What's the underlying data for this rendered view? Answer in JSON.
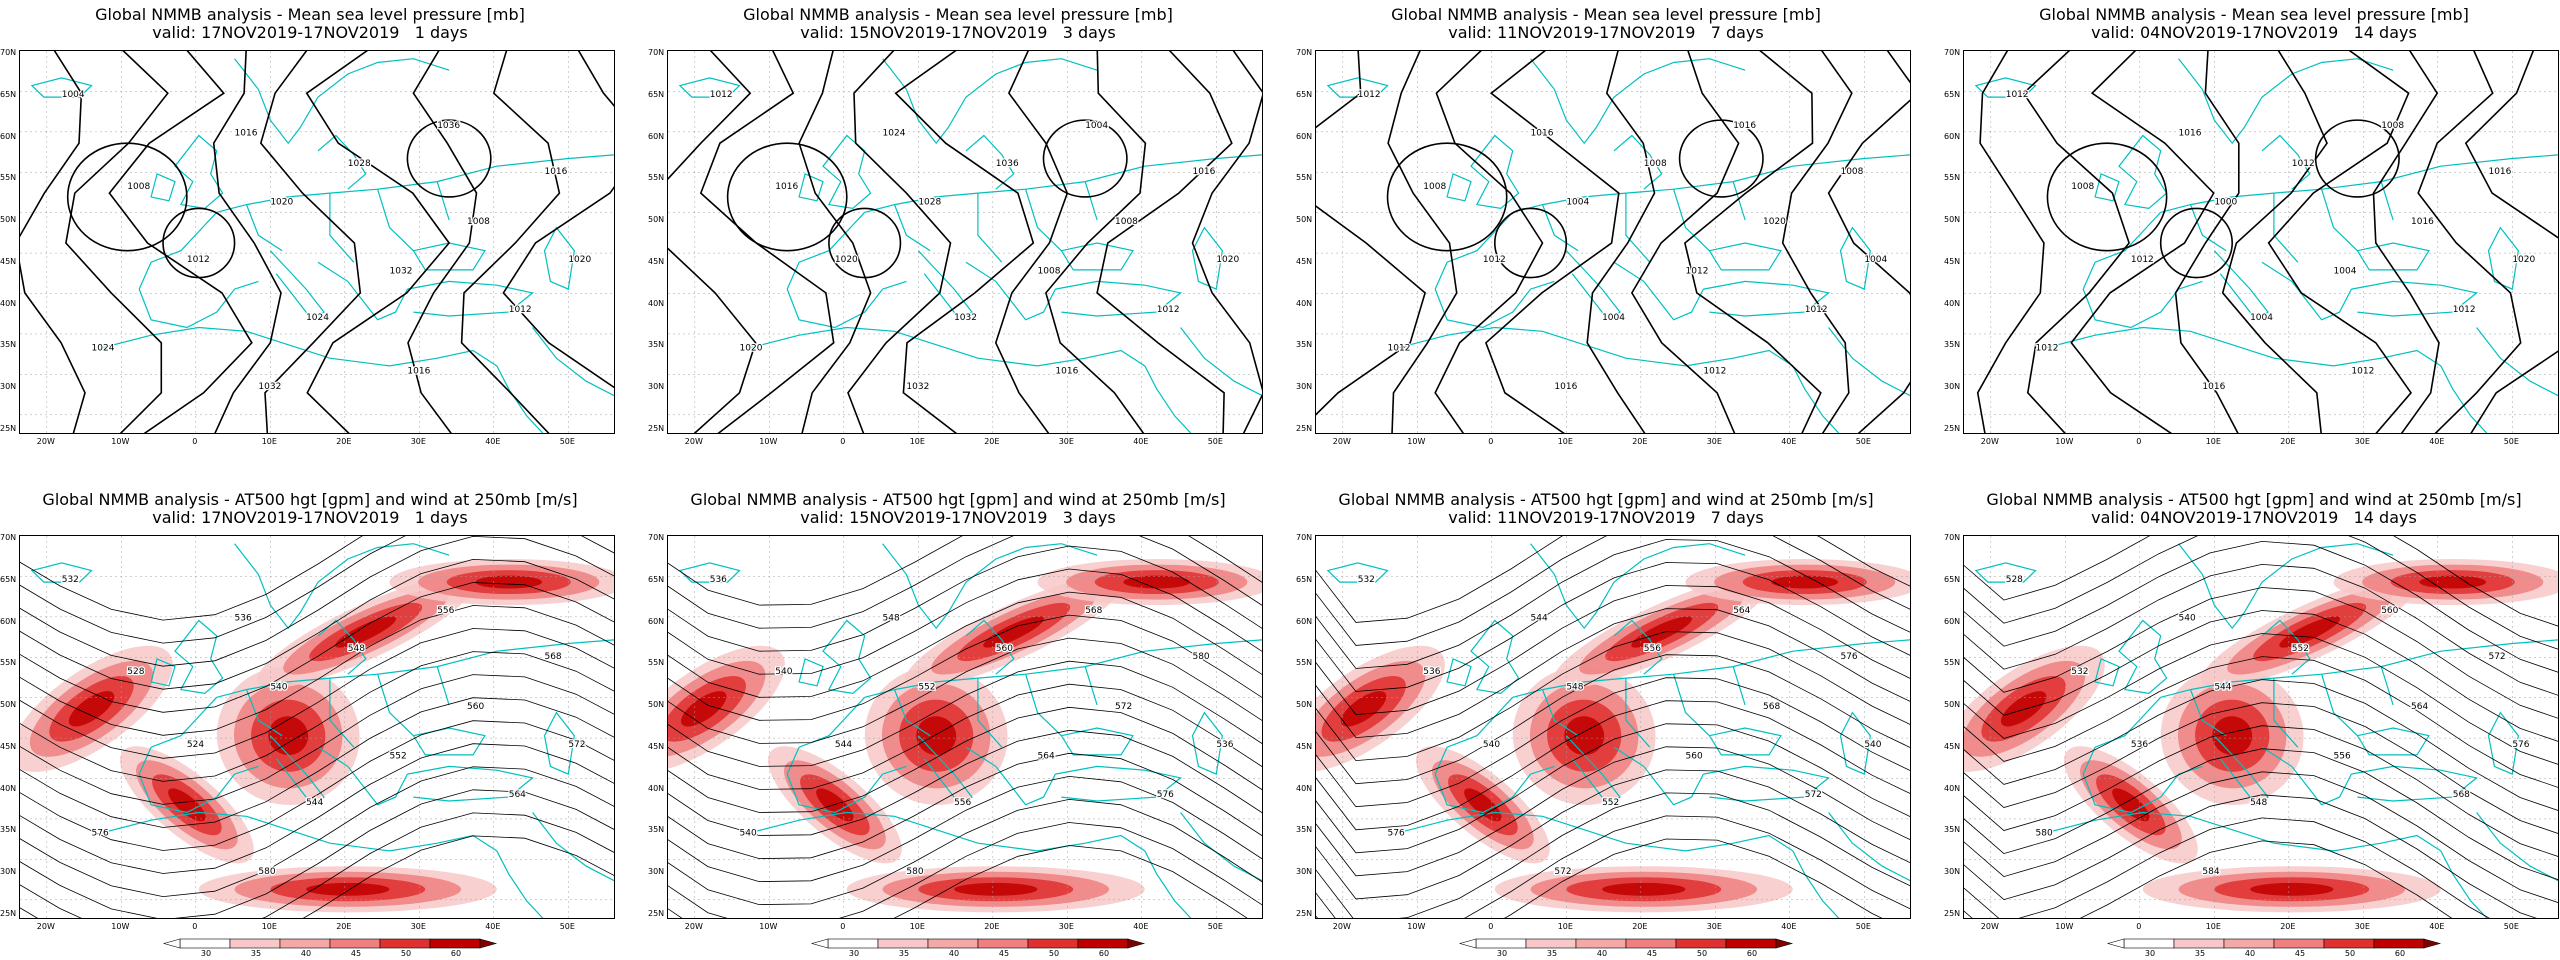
{
  "colors": {
    "coast": "#00c0c0",
    "contour": "#000000",
    "wind_light": "#f8c8c8",
    "wind_mid": "#f08080",
    "wind_strong": "#e03030",
    "wind_max": "#c00000",
    "grid": "#a0a0a0"
  },
  "axes": {
    "lat_ticks": [
      "70N",
      "65N",
      "60N",
      "55N",
      "50N",
      "45N",
      "40N",
      "35N",
      "30N",
      "25N"
    ],
    "lon_ticks": [
      "20W",
      "10W",
      "0",
      "10E",
      "20E",
      "30E",
      "40E",
      "50E"
    ]
  },
  "rows": [
    {
      "type": "mslp",
      "title": "Global NMMB analysis - Mean sea level pressure [mb]",
      "panels": [
        {
          "valid": "valid: 17NOV2019-17NOV2019   1 days",
          "labels": [
            "1004",
            "1008",
            "1012",
            "1016",
            "1020",
            "1024",
            "1028",
            "1032",
            "1036",
            "1008",
            "1012",
            "1016",
            "1020",
            "1024",
            "1032",
            "1016"
          ]
        },
        {
          "valid": "valid: 15NOV2019-17NOV2019   3 days",
          "labels": [
            "1012",
            "1016",
            "1020",
            "1024",
            "1028",
            "1032",
            "1036",
            "1008",
            "1004",
            "1008",
            "1012",
            "1016",
            "1020",
            "1020",
            "1032",
            "1016"
          ]
        },
        {
          "valid": "valid: 11NOV2019-17NOV2019   7 days",
          "labels": [
            "1012",
            "1008",
            "1012",
            "1016",
            "1004",
            "1004",
            "1008",
            "1012",
            "1016",
            "1020",
            "1012",
            "1008",
            "1004",
            "1012",
            "1016",
            "1012"
          ]
        },
        {
          "valid": "valid: 04NOV2019-17NOV2019   14 days",
          "labels": [
            "1012",
            "1008",
            "1012",
            "1016",
            "1000",
            "1004",
            "1012",
            "1004",
            "1008",
            "1016",
            "1012",
            "1016",
            "1020",
            "1012",
            "1016",
            "1012"
          ]
        }
      ]
    },
    {
      "type": "hgt",
      "title": "Global NMMB analysis - AT500 hgt [gpm] and wind at 250mb [m/s]",
      "panels": [
        {
          "valid": "valid: 17NOV2019-17NOV2019   1 days",
          "labels": [
            "532",
            "528",
            "524",
            "536",
            "540",
            "544",
            "548",
            "552",
            "556",
            "560",
            "564",
            "568",
            "572",
            "576",
            "580"
          ]
        },
        {
          "valid": "valid: 15NOV2019-17NOV2019   3 days",
          "labels": [
            "536",
            "540",
            "544",
            "548",
            "552",
            "556",
            "560",
            "564",
            "568",
            "572",
            "576",
            "580",
            "536",
            "540",
            "580"
          ]
        },
        {
          "valid": "valid: 11NOV2019-17NOV2019   7 days",
          "labels": [
            "532",
            "536",
            "540",
            "544",
            "548",
            "552",
            "556",
            "560",
            "564",
            "568",
            "572",
            "576",
            "540",
            "576",
            "572"
          ]
        },
        {
          "valid": "valid: 04NOV2019-17NOV2019   14 days",
          "labels": [
            "528",
            "532",
            "536",
            "540",
            "544",
            "548",
            "552",
            "556",
            "560",
            "564",
            "568",
            "572",
            "576",
            "580",
            "584"
          ]
        }
      ]
    }
  ],
  "colorbar": {
    "ticks": [
      "30",
      "35",
      "40",
      "45",
      "50",
      "60"
    ]
  }
}
